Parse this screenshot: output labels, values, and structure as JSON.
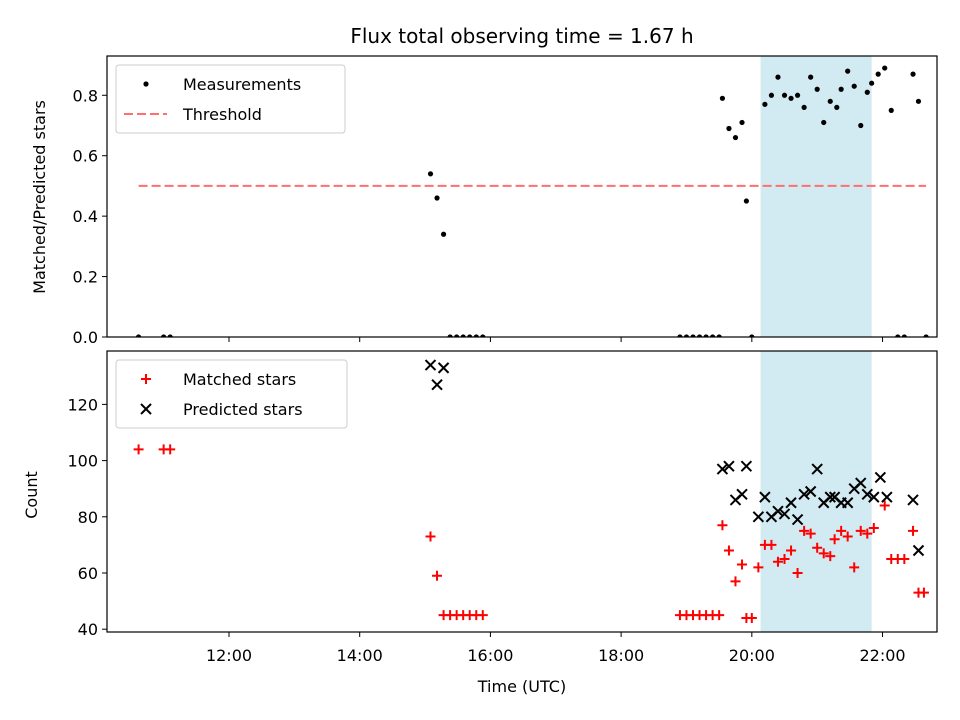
{
  "chart_data": [
    {
      "type": "scatter",
      "title": "Flux total observing time = 1.67 h",
      "xlabel": "",
      "ylabel": "Matched/Predicted stars",
      "xlim": [
        "10:08",
        "22:50"
      ],
      "ylim": [
        0,
        0.93
      ],
      "yticks": [
        "0.0",
        "0.2",
        "0.4",
        "0.6",
        "0.8"
      ],
      "xticks": [
        "12:00",
        "14:00",
        "16:00",
        "18:00",
        "20:00",
        "22:00"
      ],
      "shaded_span": [
        "20:08",
        "21:50"
      ],
      "shade_color": "#add8e6",
      "legend_position": "upper-left",
      "series": [
        {
          "name": "Measurements",
          "color": "#000000",
          "marker": "dot",
          "points": [
            [
              "10:37",
              0
            ],
            [
              "11:00",
              0
            ],
            [
              "11:06",
              0
            ],
            [
              "15:05",
              0.54
            ],
            [
              "15:11",
              0.46
            ],
            [
              "15:17",
              0.34
            ],
            [
              "15:23",
              0
            ],
            [
              "15:29",
              0
            ],
            [
              "15:35",
              0
            ],
            [
              "15:41",
              0
            ],
            [
              "15:47",
              0
            ],
            [
              "15:53",
              0
            ],
            [
              "18:54",
              0
            ],
            [
              "19:00",
              0
            ],
            [
              "19:06",
              0
            ],
            [
              "19:12",
              0
            ],
            [
              "19:18",
              0
            ],
            [
              "19:24",
              0
            ],
            [
              "19:30",
              0
            ],
            [
              "19:33",
              0.79
            ],
            [
              "19:39",
              0.69
            ],
            [
              "19:45",
              0.66
            ],
            [
              "19:51",
              0.71
            ],
            [
              "19:55",
              0.45
            ],
            [
              "20:00",
              0
            ],
            [
              "20:12",
              0.77
            ],
            [
              "20:18",
              0.8
            ],
            [
              "20:24",
              0.86
            ],
            [
              "20:30",
              0.8
            ],
            [
              "20:36",
              0.79
            ],
            [
              "20:42",
              0.8
            ],
            [
              "20:48",
              0.76
            ],
            [
              "20:54",
              0.86
            ],
            [
              "21:00",
              0.82
            ],
            [
              "21:06",
              0.71
            ],
            [
              "21:12",
              0.78
            ],
            [
              "21:18",
              0.76
            ],
            [
              "21:22",
              0.82
            ],
            [
              "21:28",
              0.88
            ],
            [
              "21:34",
              0.83
            ],
            [
              "21:40",
              0.7
            ],
            [
              "21:46",
              0.81
            ],
            [
              "21:50",
              0.84
            ],
            [
              "21:56",
              0.87
            ],
            [
              "22:02",
              0.89
            ],
            [
              "22:08",
              0.75
            ],
            [
              "22:14",
              0
            ],
            [
              "22:20",
              0
            ],
            [
              "22:28",
              0.87
            ],
            [
              "22:33",
              0.78
            ],
            [
              "22:40",
              0
            ]
          ]
        },
        {
          "name": "Threshold",
          "color": "#ff6f6f",
          "style": "dashed",
          "points": [
            [
              "10:37",
              0.5
            ],
            [
              "22:40",
              0.5
            ]
          ]
        }
      ]
    },
    {
      "type": "scatter",
      "title": "",
      "xlabel": "Time (UTC)",
      "ylabel": "Count",
      "xlim": [
        "10:08",
        "22:50"
      ],
      "ylim": [
        39,
        139
      ],
      "yticks": [
        "40",
        "60",
        "80",
        "100",
        "120"
      ],
      "xticks": [
        "12:00",
        "14:00",
        "16:00",
        "18:00",
        "20:00",
        "22:00"
      ],
      "shaded_span": [
        "20:08",
        "21:50"
      ],
      "shade_color": "#add8e6",
      "legend_position": "upper-left",
      "series": [
        {
          "name": "Matched stars",
          "color": "#ff0000",
          "marker": "plus",
          "points": [
            [
              "10:37",
              104
            ],
            [
              "11:00",
              104
            ],
            [
              "11:06",
              104
            ],
            [
              "15:05",
              73
            ],
            [
              "15:11",
              59
            ],
            [
              "15:17",
              45
            ],
            [
              "15:23",
              45
            ],
            [
              "15:29",
              45
            ],
            [
              "15:35",
              45
            ],
            [
              "15:41",
              45
            ],
            [
              "15:47",
              45
            ],
            [
              "15:53",
              45
            ],
            [
              "18:54",
              45
            ],
            [
              "19:00",
              45
            ],
            [
              "19:06",
              45
            ],
            [
              "19:12",
              45
            ],
            [
              "19:18",
              45
            ],
            [
              "19:24",
              45
            ],
            [
              "19:30",
              45
            ],
            [
              "19:33",
              77
            ],
            [
              "19:39",
              68
            ],
            [
              "19:45",
              57
            ],
            [
              "19:51",
              63
            ],
            [
              "19:55",
              44
            ],
            [
              "20:00",
              44
            ],
            [
              "20:06",
              62
            ],
            [
              "20:12",
              70
            ],
            [
              "20:18",
              70
            ],
            [
              "20:24",
              64
            ],
            [
              "20:30",
              65
            ],
            [
              "20:36",
              68
            ],
            [
              "20:42",
              60
            ],
            [
              "20:48",
              75
            ],
            [
              "20:54",
              74
            ],
            [
              "21:00",
              69
            ],
            [
              "21:06",
              67
            ],
            [
              "21:12",
              66
            ],
            [
              "21:16",
              72
            ],
            [
              "21:22",
              75
            ],
            [
              "21:28",
              73
            ],
            [
              "21:34",
              62
            ],
            [
              "21:40",
              75
            ],
            [
              "21:46",
              74
            ],
            [
              "21:52",
              76
            ],
            [
              "22:02",
              84
            ],
            [
              "22:08",
              65
            ],
            [
              "22:14",
              65
            ],
            [
              "22:20",
              65
            ],
            [
              "22:28",
              75
            ],
            [
              "22:33",
              53
            ],
            [
              "22:38",
              53
            ]
          ]
        },
        {
          "name": "Predicted stars",
          "color": "#000000",
          "marker": "x",
          "points": [
            [
              "15:05",
              134
            ],
            [
              "15:11",
              127
            ],
            [
              "15:17",
              133
            ],
            [
              "19:33",
              97
            ],
            [
              "19:39",
              98
            ],
            [
              "19:45",
              86
            ],
            [
              "19:51",
              88
            ],
            [
              "19:55",
              98
            ],
            [
              "20:06",
              80
            ],
            [
              "20:12",
              87
            ],
            [
              "20:18",
              80
            ],
            [
              "20:24",
              82
            ],
            [
              "20:30",
              81
            ],
            [
              "20:36",
              85
            ],
            [
              "20:42",
              79
            ],
            [
              "20:48",
              88
            ],
            [
              "20:54",
              89
            ],
            [
              "21:00",
              97
            ],
            [
              "21:06",
              85
            ],
            [
              "21:12",
              87
            ],
            [
              "21:16",
              87
            ],
            [
              "21:22",
              85
            ],
            [
              "21:28",
              85
            ],
            [
              "21:34",
              90
            ],
            [
              "21:40",
              92
            ],
            [
              "21:46",
              88
            ],
            [
              "21:52",
              87
            ],
            [
              "21:58",
              94
            ],
            [
              "22:04",
              87
            ],
            [
              "22:28",
              86
            ],
            [
              "22:33",
              68
            ]
          ]
        }
      ]
    }
  ]
}
